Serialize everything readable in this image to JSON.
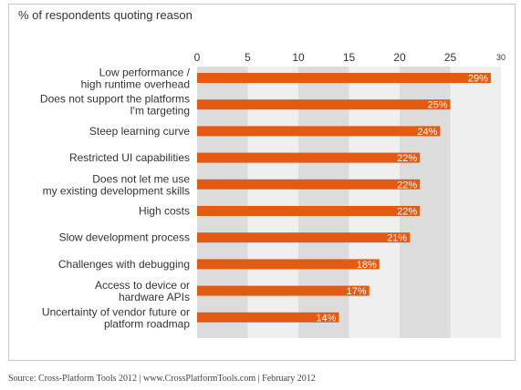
{
  "chart_data": {
    "type": "bar",
    "orientation": "horizontal",
    "title": "% of respondents quoting reason",
    "xlabel": "",
    "ylabel": "",
    "xlim": [
      0,
      30
    ],
    "ticks": [
      0,
      5,
      10,
      15,
      20,
      25,
      30
    ],
    "bar_color": "#e35a10",
    "band_color": "#dcdcdc",
    "band_alt_color": "#efefef",
    "categories": [
      [
        "Low performance /",
        "high runtime overhead"
      ],
      [
        "Does not support the platforms",
        "I'm targeting"
      ],
      [
        "Steep learning curve"
      ],
      [
        "Restricted UI capabilities"
      ],
      [
        "Does not let me use",
        "my existing development skills"
      ],
      [
        "High costs"
      ],
      [
        "Slow development process"
      ],
      [
        "Challenges with debugging"
      ],
      [
        "Access to device or",
        "hardware APIs"
      ],
      [
        "Uncertainty of vendor future or",
        "platform roadmap"
      ]
    ],
    "values": [
      29,
      25,
      24,
      22,
      22,
      22,
      21,
      18,
      17,
      14
    ],
    "value_labels": [
      "29%",
      "25%",
      "24%",
      "22%",
      "22%",
      "22%",
      "21%",
      "18%",
      "17%",
      "14%"
    ]
  },
  "footer": {
    "source": "Source: Cross-Platform Tools 2012 | www.CrossPlatformTools.com | February 2012"
  }
}
